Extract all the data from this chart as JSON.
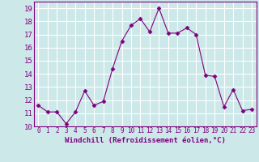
{
  "x": [
    0,
    1,
    2,
    3,
    4,
    5,
    6,
    7,
    8,
    9,
    10,
    11,
    12,
    13,
    14,
    15,
    16,
    17,
    18,
    19,
    20,
    21,
    22,
    23
  ],
  "y": [
    11.6,
    11.1,
    11.1,
    10.2,
    11.1,
    12.7,
    11.6,
    11.9,
    14.4,
    16.5,
    17.7,
    18.2,
    17.2,
    19.0,
    17.1,
    17.1,
    17.5,
    17.0,
    13.9,
    13.8,
    11.5,
    12.8,
    11.2,
    11.3
  ],
  "xlim": [
    -0.5,
    23.5
  ],
  "ylim": [
    10,
    19.5
  ],
  "yticks": [
    10,
    11,
    12,
    13,
    14,
    15,
    16,
    17,
    18,
    19
  ],
  "xticks": [
    0,
    1,
    2,
    3,
    4,
    5,
    6,
    7,
    8,
    9,
    10,
    11,
    12,
    13,
    14,
    15,
    16,
    17,
    18,
    19,
    20,
    21,
    22,
    23
  ],
  "xlabel": "Windchill (Refroidissement éolien,°C)",
  "line_color": "#800080",
  "marker": "D",
  "marker_size": 2.5,
  "bg_color": "#cce8e8",
  "grid_color": "#ffffff",
  "label_color": "#800080",
  "xlabel_fontsize": 6.5,
  "ytick_fontsize": 6.5,
  "xtick_fontsize": 5.5
}
